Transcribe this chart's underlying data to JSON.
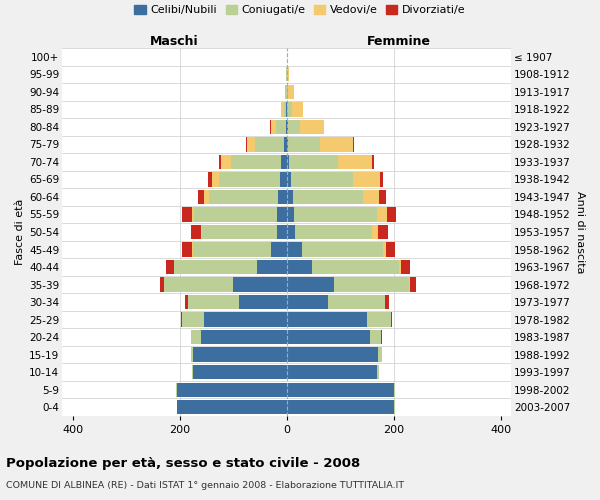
{
  "age_groups": [
    "0-4",
    "5-9",
    "10-14",
    "15-19",
    "20-24",
    "25-29",
    "30-34",
    "35-39",
    "40-44",
    "45-49",
    "50-54",
    "55-59",
    "60-64",
    "65-69",
    "70-74",
    "75-79",
    "80-84",
    "85-89",
    "90-94",
    "95-99",
    "100+"
  ],
  "birth_years": [
    "2003-2007",
    "1998-2002",
    "1993-1997",
    "1988-1992",
    "1983-1987",
    "1978-1982",
    "1973-1977",
    "1968-1972",
    "1963-1967",
    "1958-1962",
    "1953-1957",
    "1948-1952",
    "1943-1947",
    "1938-1942",
    "1933-1937",
    "1928-1932",
    "1923-1927",
    "1918-1922",
    "1913-1917",
    "1908-1912",
    "≤ 1907"
  ],
  "colors": {
    "celibi": "#3c6fa0",
    "coniugati": "#bccf96",
    "vedovi": "#f5ca6e",
    "divorziati": "#c8281e"
  },
  "maschi": {
    "celibi": [
      205,
      205,
      175,
      175,
      160,
      155,
      90,
      100,
      55,
      30,
      18,
      18,
      16,
      12,
      10,
      5,
      2,
      1,
      0,
      0,
      0
    ],
    "coniugati": [
      1,
      2,
      3,
      5,
      20,
      40,
      95,
      130,
      155,
      145,
      140,
      155,
      130,
      115,
      95,
      55,
      18,
      5,
      3,
      1,
      0
    ],
    "vedovi": [
      0,
      0,
      0,
      0,
      0,
      0,
      0,
      0,
      1,
      2,
      3,
      5,
      8,
      12,
      18,
      15,
      10,
      4,
      1,
      0,
      0
    ],
    "divorziati": [
      0,
      0,
      0,
      0,
      0,
      2,
      5,
      8,
      15,
      18,
      18,
      18,
      12,
      8,
      3,
      2,
      1,
      0,
      0,
      0,
      0
    ]
  },
  "femmine": {
    "celibi": [
      200,
      200,
      168,
      170,
      155,
      150,
      78,
      88,
      48,
      28,
      15,
      14,
      12,
      8,
      5,
      3,
      2,
      1,
      0,
      0,
      0
    ],
    "coniugati": [
      2,
      3,
      4,
      8,
      22,
      45,
      105,
      140,
      162,
      152,
      145,
      155,
      130,
      115,
      90,
      60,
      22,
      8,
      3,
      1,
      0
    ],
    "vedovi": [
      0,
      0,
      0,
      0,
      0,
      0,
      1,
      2,
      3,
      5,
      10,
      18,
      30,
      52,
      65,
      60,
      45,
      22,
      10,
      3,
      1
    ],
    "divorziati": [
      0,
      0,
      0,
      0,
      1,
      2,
      8,
      12,
      18,
      18,
      20,
      18,
      14,
      5,
      4,
      2,
      1,
      0,
      0,
      0,
      0
    ]
  },
  "xlim": 420,
  "xticks": [
    -400,
    -200,
    0,
    200,
    400
  ],
  "title": "Popolazione per età, sesso e stato civile - 2008",
  "subtitle": "COMUNE DI ALBINEA (RE) - Dati ISTAT 1° gennaio 2008 - Elaborazione TUTTITALIA.IT",
  "ylabel_left": "Fasce di età",
  "ylabel_right": "Anni di nascita",
  "xlabel_left": "Maschi",
  "xlabel_right": "Femmine",
  "legend_labels": [
    "Celibi/Nubili",
    "Coniugati/e",
    "Vedovi/e",
    "Divorziati/e"
  ],
  "background_color": "#f0f0f0",
  "plot_background": "#ffffff",
  "bar_height": 0.82
}
